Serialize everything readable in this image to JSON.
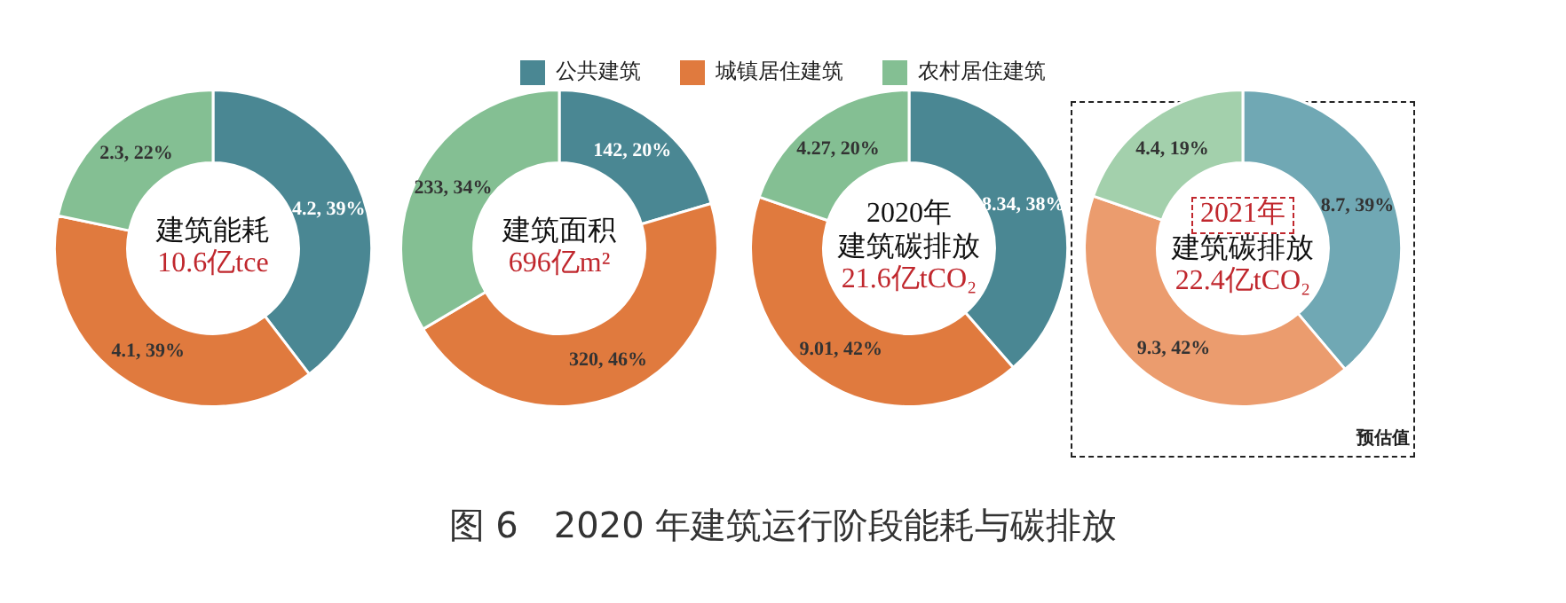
{
  "chart_data": [
    {
      "type": "donut",
      "title": "建筑能耗",
      "subtitle": "10.6亿tce",
      "categories": [
        "公共建筑",
        "城镇居住建筑",
        "农村居住建筑"
      ],
      "values": [
        4.2,
        4.1,
        2.3
      ],
      "colors": [
        "#4a8793",
        "#e07a3e",
        "#84bf93"
      ],
      "value_labels": [
        "4.2, 39%",
        "4.1, 39%",
        "2.3, 22%"
      ],
      "legend": "top",
      "annotations": [
        "图 6　2020 年建筑运行阶段能耗与碳排放"
      ]
    },
    {
      "type": "donut",
      "title": "建筑面积",
      "subtitle": "696亿m²",
      "categories": [
        null,
        null,
        null
      ],
      "values": [
        142,
        320,
        233
      ],
      "colors": [
        "#4a8793",
        "#e07a3e",
        "#84bf93"
      ],
      "value_labels": [
        "142, 20%",
        "320, 46%",
        "233, 34%"
      ]
    },
    {
      "type": "donut",
      "title": "建筑碳排放",
      "subtitle": "21.6亿tCO₂",
      "categories": [
        null,
        null,
        null
      ],
      "values": [
        8.34,
        9.01,
        4.27
      ],
      "colors": [
        "#4a8793",
        "#e07a3e",
        "#84bf93"
      ],
      "value_labels": [
        "8.34, 38%",
        "9.01, 42%",
        "4.27, 20%"
      ],
      "annotations": [
        "2020年"
      ]
    },
    {
      "type": "donut",
      "title": "建筑碳排放",
      "subtitle": "22.4亿tCO₂",
      "categories": [
        null,
        null,
        null
      ],
      "values": [
        8.7,
        9.3,
        4.4
      ],
      "colors": [
        "#70a8b4",
        "#eb9c6e",
        "#a3d0ac"
      ],
      "value_labels": [
        "8.7, 39%",
        "9.3, 42%",
        "4.4, 19%"
      ],
      "annotations": [
        "2021年",
        "预估值"
      ]
    }
  ]
}
